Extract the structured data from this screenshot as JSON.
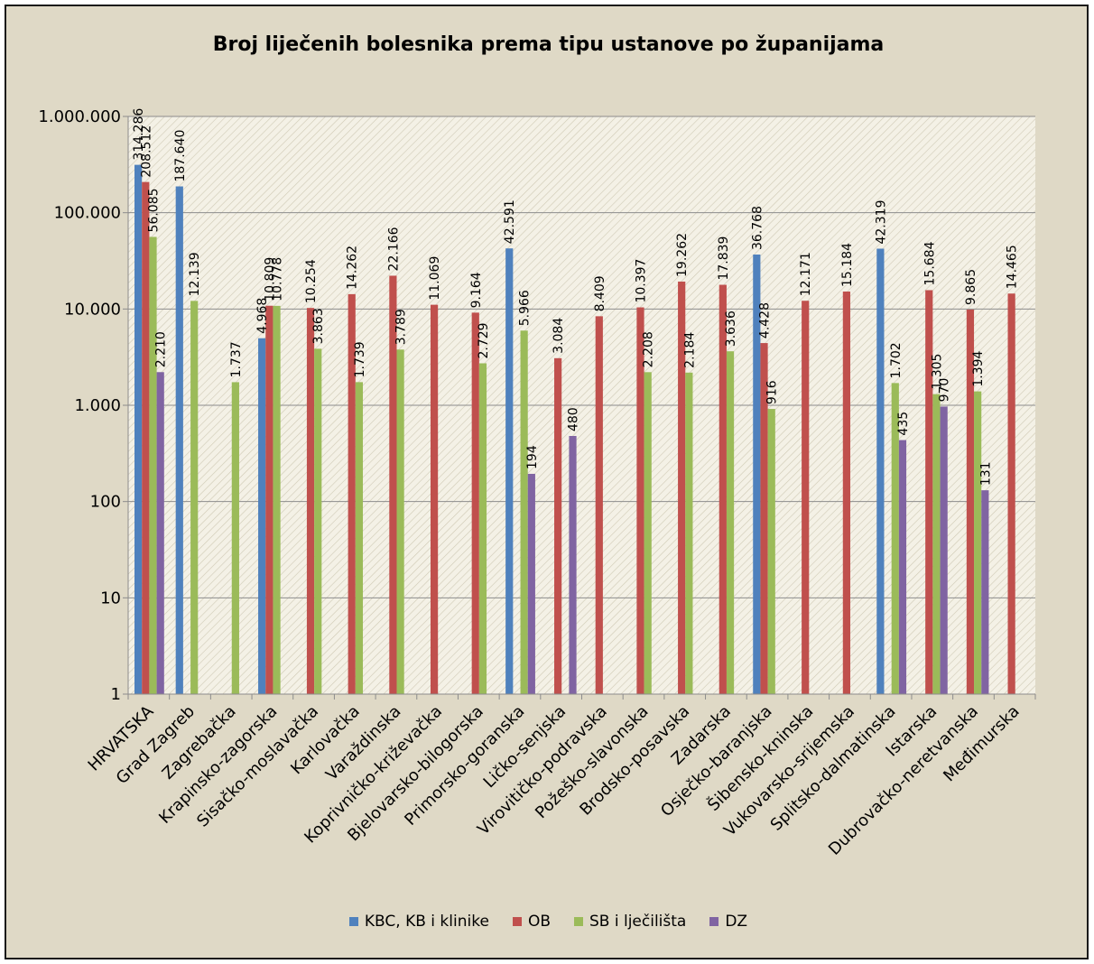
{
  "chart_data": {
    "type": "bar",
    "title": "Broj liječenih bolesnika prema tipu ustanove po županijama",
    "y_scale": "log",
    "ylim": [
      1,
      1000000
    ],
    "grid": true,
    "legend_position": "bottom",
    "y_ticks": [
      1,
      10,
      100,
      1000,
      10000,
      100000,
      1000000
    ],
    "y_tick_labels": [
      "1",
      "10",
      "100",
      "1.000",
      "10.000",
      "100.000",
      "1.000.000"
    ],
    "categories": [
      "HRVATSKA",
      "Grad Zagreb",
      "Zagrebačka",
      "Krapinsko-zagorska",
      "Sisačko-moslavačka",
      "Karlovačka",
      "Varaždinska",
      "Koprivničko-križevačka",
      "Bjelovarsko-bilogorska",
      "Primorsko-goranska",
      "Ličko-senjska",
      "Virovitičko-podravska",
      "Požeško-slavonska",
      "Brodsko-posavska",
      "Zadarska",
      "Osječko-baranjska",
      "Šibensko-kninska",
      "Vukovarsko-srijemska",
      "Splitsko-dalmatinska",
      "Istarska",
      "Dubrovačko-neretvanska",
      "Međimurska"
    ],
    "series": [
      {
        "name": "KBC, KB i klinike",
        "color": "#4f81bd",
        "values": [
          314286,
          187640,
          null,
          4968,
          null,
          null,
          null,
          null,
          null,
          42591,
          null,
          null,
          null,
          null,
          null,
          36768,
          null,
          null,
          42319,
          null,
          null,
          null
        ],
        "labels": [
          "314.286",
          "187.640",
          null,
          "4.968",
          null,
          null,
          null,
          null,
          null,
          "42.591",
          null,
          null,
          null,
          null,
          null,
          "36.768",
          null,
          null,
          "42.319",
          null,
          null,
          null
        ]
      },
      {
        "name": "OB",
        "color": "#c0504d",
        "values": [
          208512,
          null,
          null,
          10809,
          10254,
          14262,
          22166,
          11069,
          9164,
          null,
          3084,
          8409,
          10397,
          19262,
          17839,
          4428,
          12171,
          15184,
          null,
          15684,
          9865,
          14465
        ],
        "labels": [
          "208.512",
          null,
          null,
          "10.809",
          "10.254",
          "14.262",
          "22.166",
          "11.069",
          "9.164",
          null,
          "3.084",
          "8.409",
          "10.397",
          "19.262",
          "17.839",
          "4.428",
          "12.171",
          "15.184",
          null,
          "15.684",
          "9.865",
          "14.465"
        ]
      },
      {
        "name": "SB i lječilišta",
        "color": "#9bbb59",
        "values": [
          56085,
          12139,
          1737,
          10778,
          3863,
          1739,
          3789,
          null,
          2729,
          5966,
          null,
          null,
          2208,
          2184,
          3636,
          916,
          null,
          null,
          1702,
          1305,
          1394,
          null
        ],
        "labels": [
          "56.085",
          "12.139",
          "1.737",
          "10.778",
          "3.863",
          "1.739",
          "3.789",
          null,
          "2.729",
          "5.966",
          null,
          null,
          "2.208",
          "2.184",
          "3.636",
          "916",
          null,
          null,
          "1.702",
          "1.305",
          "1.394",
          null
        ]
      },
      {
        "name": "DZ",
        "color": "#8064a2",
        "values": [
          2210,
          null,
          null,
          null,
          null,
          null,
          null,
          null,
          null,
          194,
          480,
          null,
          null,
          null,
          null,
          null,
          null,
          null,
          435,
          970,
          131,
          null
        ],
        "labels": [
          "2.210",
          null,
          null,
          null,
          null,
          null,
          null,
          null,
          null,
          "194",
          "480",
          null,
          null,
          null,
          null,
          null,
          null,
          null,
          "435",
          "970",
          "131",
          null
        ]
      }
    ]
  }
}
